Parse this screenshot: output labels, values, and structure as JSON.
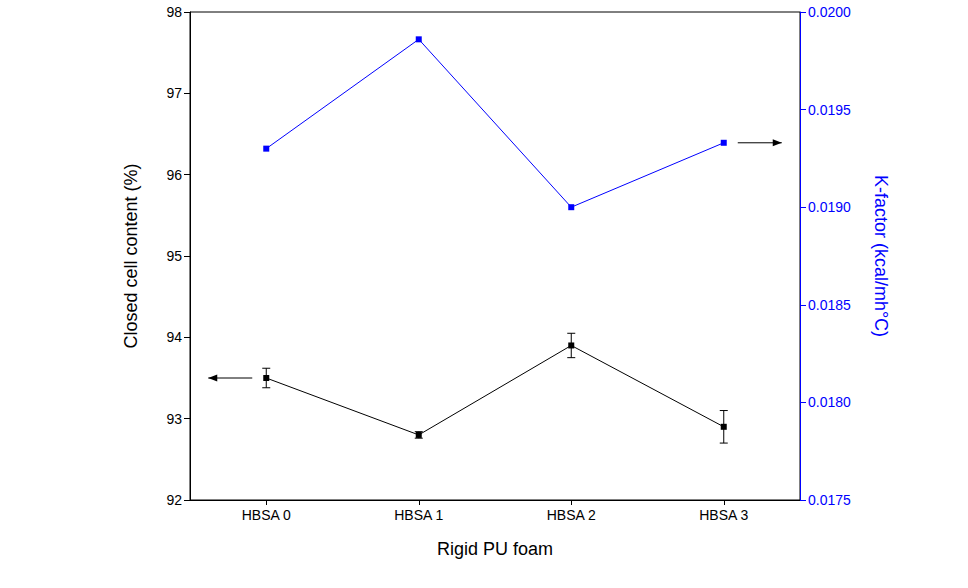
{
  "chart_data": {
    "type": "line",
    "x_label": "Rigid PU foam",
    "y_label": "Closed cell content (%)",
    "y2_label": "K-factor (kcal/mh°C)",
    "categories": [
      "HBSA 0",
      "HBSA 1",
      "HBSA 2",
      "HBSA 3"
    ],
    "series": [
      {
        "color": "#000000",
        "marker": "square",
        "line_style": "solid",
        "values": [
          93.5,
          92.8,
          93.9,
          92.9
        ],
        "errors": [
          0.12,
          0.04,
          0.15,
          0.2
        ]
      },
      {
        "color": "#0000ff",
        "marker": "square",
        "line_style": "solid",
        "axis": "y2",
        "values": [
          0.0193,
          0.01986,
          0.019,
          0.01933
        ]
      }
    ],
    "ylim": [
      92,
      98
    ],
    "yticks": [
      92,
      93,
      94,
      95,
      96,
      97,
      98
    ],
    "y2lim": [
      0.0175,
      0.02
    ],
    "y2ticks": [
      0.0175,
      {
        "value": 0.018,
        "label": "0.0180"
      },
      0.0185,
      {
        "value": 0.019,
        "label": "0.0190"
      },
      0.0195,
      {
        "value": 0.02,
        "label": "0.0200"
      }
    ],
    "grid": false
  }
}
